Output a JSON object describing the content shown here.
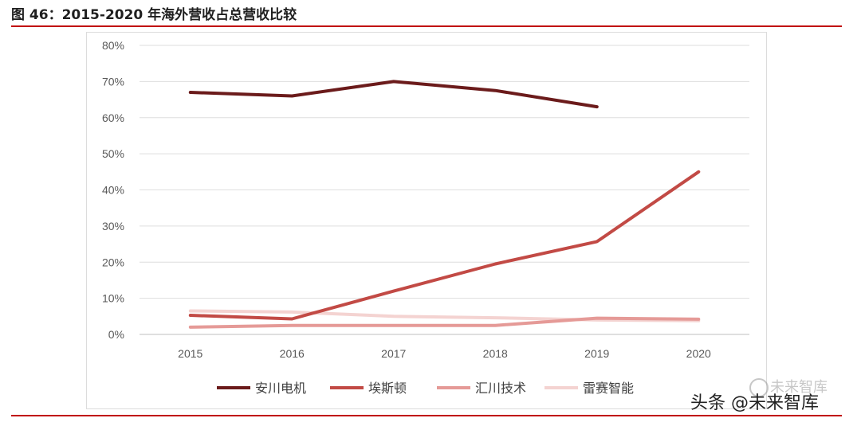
{
  "header": {
    "title": "图 46：2015-2020 年海外营收占总营收比较"
  },
  "watermark": {
    "faint": "未来智库",
    "main": "头条 @未来智库"
  },
  "colors": {
    "rule": "#c00000"
  },
  "chart_data": {
    "type": "line",
    "title": "",
    "xlabel": "",
    "ylabel": "",
    "x": [
      "2015",
      "2016",
      "2017",
      "2018",
      "2019",
      "2020"
    ],
    "ylim": [
      0,
      80
    ],
    "yticks": [
      0,
      10,
      20,
      30,
      40,
      50,
      60,
      70,
      80
    ],
    "ytick_labels": [
      "0%",
      "10%",
      "20%",
      "30%",
      "40%",
      "50%",
      "60%",
      "70%",
      "80%"
    ],
    "grid": true,
    "legend_position": "bottom",
    "series": [
      {
        "name": "安川电机",
        "color": "#6b1b1b",
        "values": [
          67,
          66,
          70,
          67.5,
          63,
          null
        ]
      },
      {
        "name": "埃斯顿",
        "color": "#c24a45",
        "values": [
          5.3,
          4.3,
          12,
          19.5,
          25.7,
          45
        ]
      },
      {
        "name": "汇川技术",
        "color": "#e59a97",
        "values": [
          2,
          2.5,
          2.5,
          2.5,
          4.5,
          4.2
        ]
      },
      {
        "name": "雷赛智能",
        "color": "#f4d3d1",
        "values": [
          6.5,
          6.2,
          5,
          4.6,
          4,
          3.8
        ]
      }
    ]
  }
}
